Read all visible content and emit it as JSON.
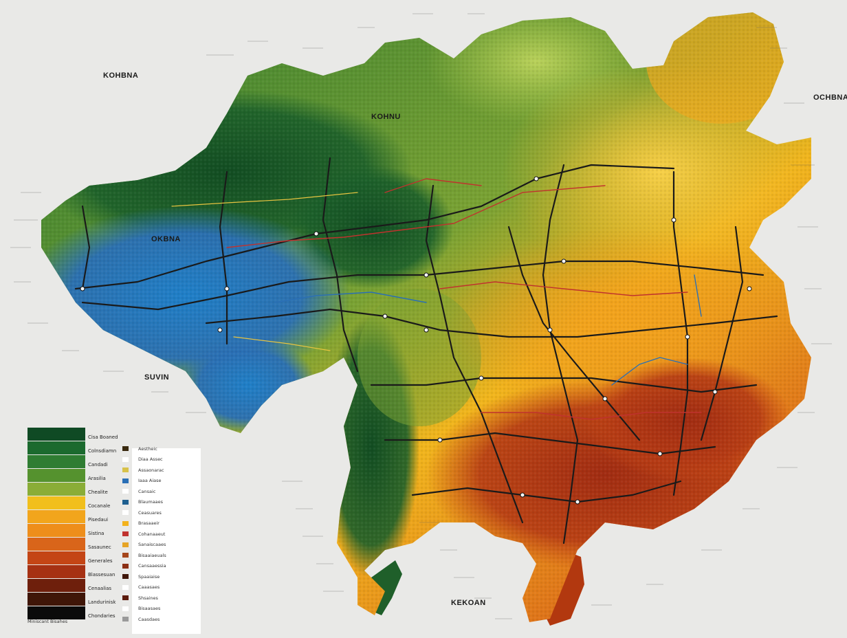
{
  "labels": {
    "nw": "KOHBNA",
    "north": "KOHNU",
    "west": "OKBNA",
    "east": "OCHBNA",
    "sw": "SUVIN",
    "south": "KEKOAN"
  },
  "legend": {
    "colors": [
      "#0f4a24",
      "#1b6a2e",
      "#2f7d32",
      "#55922e",
      "#8aad37",
      "#f1bf1c",
      "#f2a51c",
      "#ee8e1b",
      "#d9651a",
      "#c44515",
      "#a63113",
      "#6e1f0c",
      "#3f1608",
      "#0b0b0b"
    ],
    "labels": [
      "Cisa Boaned",
      "Colnsdiamn",
      "Candadi",
      "Arasilia",
      "Chealite",
      "Cocanale",
      "Pisedaui",
      "Sistina",
      "Sasaunec",
      "Generales",
      "Blassesuan",
      "Cenaalias",
      "Landurinisk",
      "Chondaries"
    ],
    "panel_rows": [
      {
        "color": "#3a2a10",
        "text": "Aestheic"
      },
      {
        "color": "#ffffff",
        "text": "Diaa Assec"
      },
      {
        "color": "#d8c24a",
        "text": "Assaonarac"
      },
      {
        "color": "#2a6fb5",
        "text": "Iaaa Aiase"
      },
      {
        "color": "#ffffff",
        "text": "Cansaic"
      },
      {
        "color": "#1e5f8f",
        "text": "Blaumaaes"
      },
      {
        "color": "#ffffff",
        "text": "Ceasuares"
      },
      {
        "color": "#f3b21c",
        "text": "Brasaaeir"
      },
      {
        "color": "#c0322e",
        "text": "Cohanaaeut"
      },
      {
        "color": "#e6a426",
        "text": "Sanaiscaaes"
      },
      {
        "color": "#a5451a",
        "text": "Bisaaiaeuals"
      },
      {
        "color": "#8b2f14",
        "text": "Cansaaessia"
      },
      {
        "color": "#3f1608",
        "text": "Spaaiaise"
      },
      {
        "color": "#ffffff",
        "text": "Caaasaes"
      },
      {
        "color": "#5a1a0a",
        "text": "Shsaines"
      },
      {
        "color": "#ffffff",
        "text": "Bisaasaes"
      },
      {
        "color": "#9a9a9a",
        "text": "Caasdaes"
      }
    ],
    "note": "Miniscant Bisahes"
  },
  "colors": {
    "background": "#e9e9e7",
    "rail_black": "#1a1a1a",
    "rail_red": "#c0322e",
    "rail_blue": "#2a6fb5",
    "rail_yellow": "#e8c440"
  }
}
